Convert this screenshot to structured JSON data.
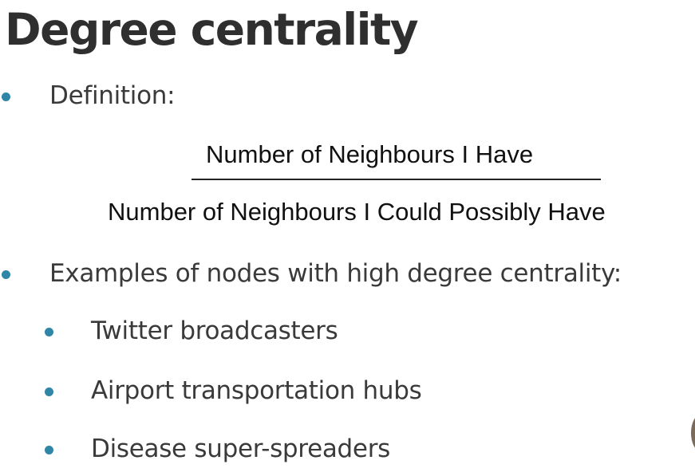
{
  "slide": {
    "title": "Degree centrality",
    "definition_label": "Definition:",
    "formula": {
      "numerator": "Number of Neighbours I Have",
      "denominator": "Number of Neighbours I Could Possibly Have"
    },
    "examples_label": "Examples of nodes with high degree centrality:",
    "examples": [
      "Twitter broadcasters",
      "Airport transportation hubs",
      "Disease super-spreaders"
    ]
  },
  "colors": {
    "bullet": "#2f86a6",
    "text": "#3a3a3a",
    "title": "#2f2f2f"
  }
}
